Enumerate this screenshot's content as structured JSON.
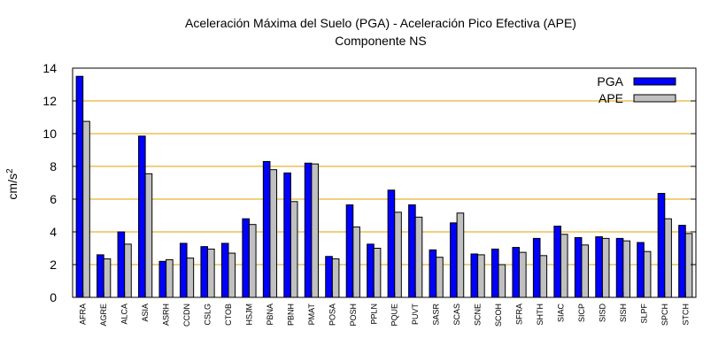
{
  "chart_data": {
    "type": "bar",
    "title": "Aceleración Máxima del Suelo (PGA) -  Aceleración Pico Efectiva (APE)",
    "subtitle": "Componente NS",
    "ylabel_base": "cm/s",
    "ylabel_exp": "2",
    "ylim": [
      0,
      14
    ],
    "yticks": [
      "0",
      "2",
      "4",
      "6",
      "8",
      "10",
      "12",
      "14"
    ],
    "grid": true,
    "legend_position": "top-right",
    "categories": [
      "AFRA",
      "AGRE",
      "ALCA",
      "ASIA",
      "ASRH",
      "CCDN",
      "CSLG",
      "CTOB",
      "HSJM",
      "PBNA",
      "PBNH",
      "PMAT",
      "POSA",
      "POSH",
      "PPLN",
      "PQUE",
      "PUVT",
      "SASR",
      "SCAS",
      "SCNE",
      "SCOH",
      "SFRA",
      "SHTH",
      "SIAC",
      "SICP",
      "SISD",
      "SISH",
      "SLPF",
      "SPCH",
      "STCH"
    ],
    "series": [
      {
        "name": "PGA",
        "color": "#0000ff",
        "values": [
          13.5,
          2.6,
          4.0,
          9.85,
          2.2,
          3.3,
          3.1,
          3.3,
          4.8,
          8.3,
          7.6,
          8.2,
          2.5,
          5.65,
          3.25,
          6.55,
          5.65,
          2.9,
          4.55,
          2.65,
          2.95,
          3.05,
          3.6,
          4.35,
          3.65,
          3.7,
          3.6,
          3.35,
          6.35,
          4.4
        ]
      },
      {
        "name": "APE",
        "color": "#c0c0c0",
        "values": [
          10.75,
          2.35,
          3.25,
          7.55,
          2.3,
          2.4,
          2.95,
          2.7,
          4.45,
          7.8,
          5.85,
          8.15,
          2.35,
          4.3,
          3.0,
          5.2,
          4.9,
          2.45,
          5.15,
          2.6,
          2.0,
          2.75,
          2.55,
          3.85,
          3.2,
          3.6,
          3.45,
          2.8,
          4.8,
          3.9
        ]
      }
    ],
    "gridline_color": "#e0a000"
  }
}
